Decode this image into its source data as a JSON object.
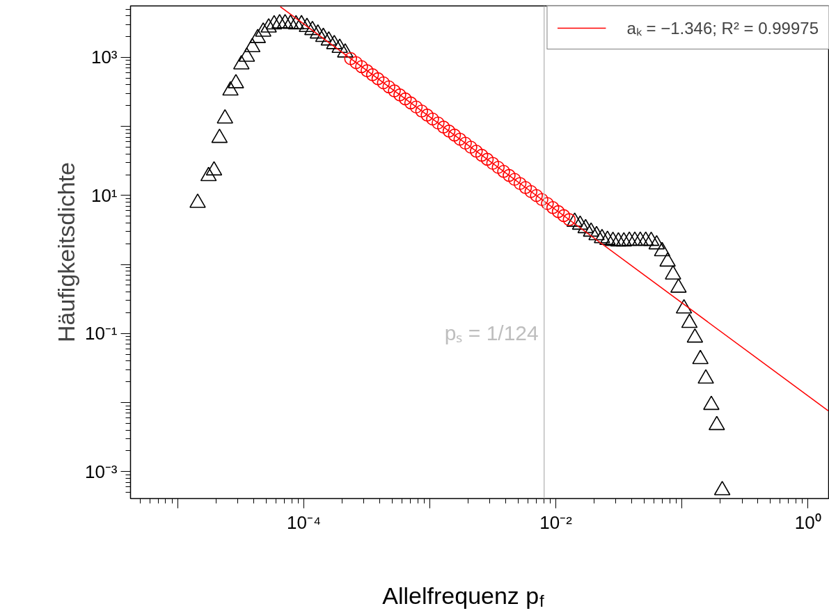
{
  "chart_data": {
    "type": "scatter",
    "xlabel": "Allelfrequenz p$_{f}$",
    "ylabel": "Häufigkeitsdichte",
    "xlim": [
      4.21e-06,
      1.48
    ],
    "ylim": [
      0.000407,
      5560
    ],
    "xticks": [
      {
        "value": 1e-05,
        "label": null
      },
      {
        "value": 0.0001,
        "label": "10⁻⁴"
      },
      {
        "value": 0.001,
        "label": null
      },
      {
        "value": 0.01,
        "label": "10⁻²"
      },
      {
        "value": 0.1,
        "label": null
      },
      {
        "value": 1,
        "label": "10⁰"
      }
    ],
    "yticks": [
      {
        "value": 0.001,
        "label": "10⁻³"
      },
      {
        "value": 0.01,
        "label": null
      },
      {
        "value": 0.1,
        "label": "10⁻¹"
      },
      {
        "value": 1,
        "label": null
      },
      {
        "value": 10,
        "label": "10¹"
      },
      {
        "value": 100,
        "label": null
      },
      {
        "value": 1000,
        "label": "10³"
      }
    ],
    "log": "xy",
    "grid": false,
    "legend": "top right",
    "ref_lines": [
      {
        "axis": "x",
        "value": 0.008065,
        "label": "pₛ = 1/124",
        "color": "#bebebe"
      }
    ],
    "series": [
      {
        "type": "scatter",
        "marker": "triangle",
        "color": "#000000",
        "x": [
          1.436e-05,
          1.753e-05,
          1.937e-05,
          2.141e-05,
          2.366e-05,
          2.614e-05,
          2.889e-05,
          3.192e-05,
          3.527e-05,
          3.898e-05,
          4.307e-05,
          4.759e-05,
          5.259e-05,
          5.811e-05,
          6.421e-05,
          7.095e-05,
          7.84e-05,
          8.664e-05,
          9.573e-05,
          0.0001058,
          0.0001169,
          0.0001292,
          0.0001427,
          0.0001577,
          0.0001743,
          0.0001926,
          0.0002128,
          0.0141,
          0.01558,
          0.01722,
          0.01903,
          0.02103,
          0.02323,
          0.02567,
          0.02837,
          0.03135,
          0.03464,
          0.03828,
          0.0423,
          0.04674,
          0.05165,
          0.05707,
          0.06306,
          0.06968,
          0.077,
          0.08509,
          0.09402,
          0.1039,
          0.1148,
          0.1269,
          0.1402,
          0.1549,
          0.1712,
          0.1892,
          0.209
        ],
        "values": [
          7.8,
          19,
          23,
          68,
          130,
          330,
          420,
          790,
          1020,
          1400,
          1900,
          2350,
          2700,
          3000,
          3100,
          3100,
          3050,
          3000,
          3010,
          2750,
          2480,
          2210,
          1970,
          1750,
          1550,
          1370,
          1175,
          4.15,
          3.76,
          3.35,
          2.98,
          2.65,
          2.4,
          2.27,
          2.19,
          2.15,
          2.15,
          2.2,
          2.2,
          2.2,
          2.2,
          2.19,
          1.95,
          1.55,
          1.1,
          0.714,
          0.46,
          0.23,
          0.142,
          0.087,
          0.0425,
          0.0222,
          0.00922,
          0.00471,
          0.000536
        ]
      },
      {
        "type": "scatter",
        "marker": "circle",
        "color": "#ff0000",
        "x": [
          0.0002351,
          0.0002598,
          0.0002871,
          0.0003173,
          0.0003506,
          0.0003874,
          0.0004281,
          0.000473,
          0.0005227,
          0.0005776,
          0.0006382,
          0.0007052,
          0.0007793,
          0.0008611,
          0.0009515,
          0.001051,
          0.001162,
          0.001284,
          0.001419,
          0.001568,
          0.001732,
          0.001914,
          0.002115,
          0.002337,
          0.002583,
          0.002854,
          0.003154,
          0.003485,
          0.003851,
          0.004255,
          0.004702,
          0.005196,
          0.005741,
          0.006344,
          0.00701,
          0.007746,
          0.00856,
          0.009459,
          0.01045,
          0.01155,
          0.01276
        ],
        "values": [
          959,
          838,
          733,
          641,
          560,
          490,
          428,
          374,
          327,
          286,
          250,
          219,
          191,
          167,
          146,
          128,
          112,
          97.8,
          85.5,
          74.8,
          65.4,
          57.2,
          50.0,
          43.7,
          38.2,
          33.4,
          29.2,
          25.5,
          22.3,
          19.5,
          17.1,
          14.9,
          13.0,
          11.4,
          9.98,
          8.73,
          7.63,
          6.67,
          5.83,
          5.1,
          4.46
        ]
      },
      {
        "type": "line",
        "name": "aₖ = −1.346; R² = 0.99975",
        "color": "#ff0000",
        "line_style": "solid",
        "marker": "none",
        "x": [
          6.5e-05,
          1.45
        ],
        "values": [
          5420,
          0.0076
        ]
      }
    ]
  }
}
